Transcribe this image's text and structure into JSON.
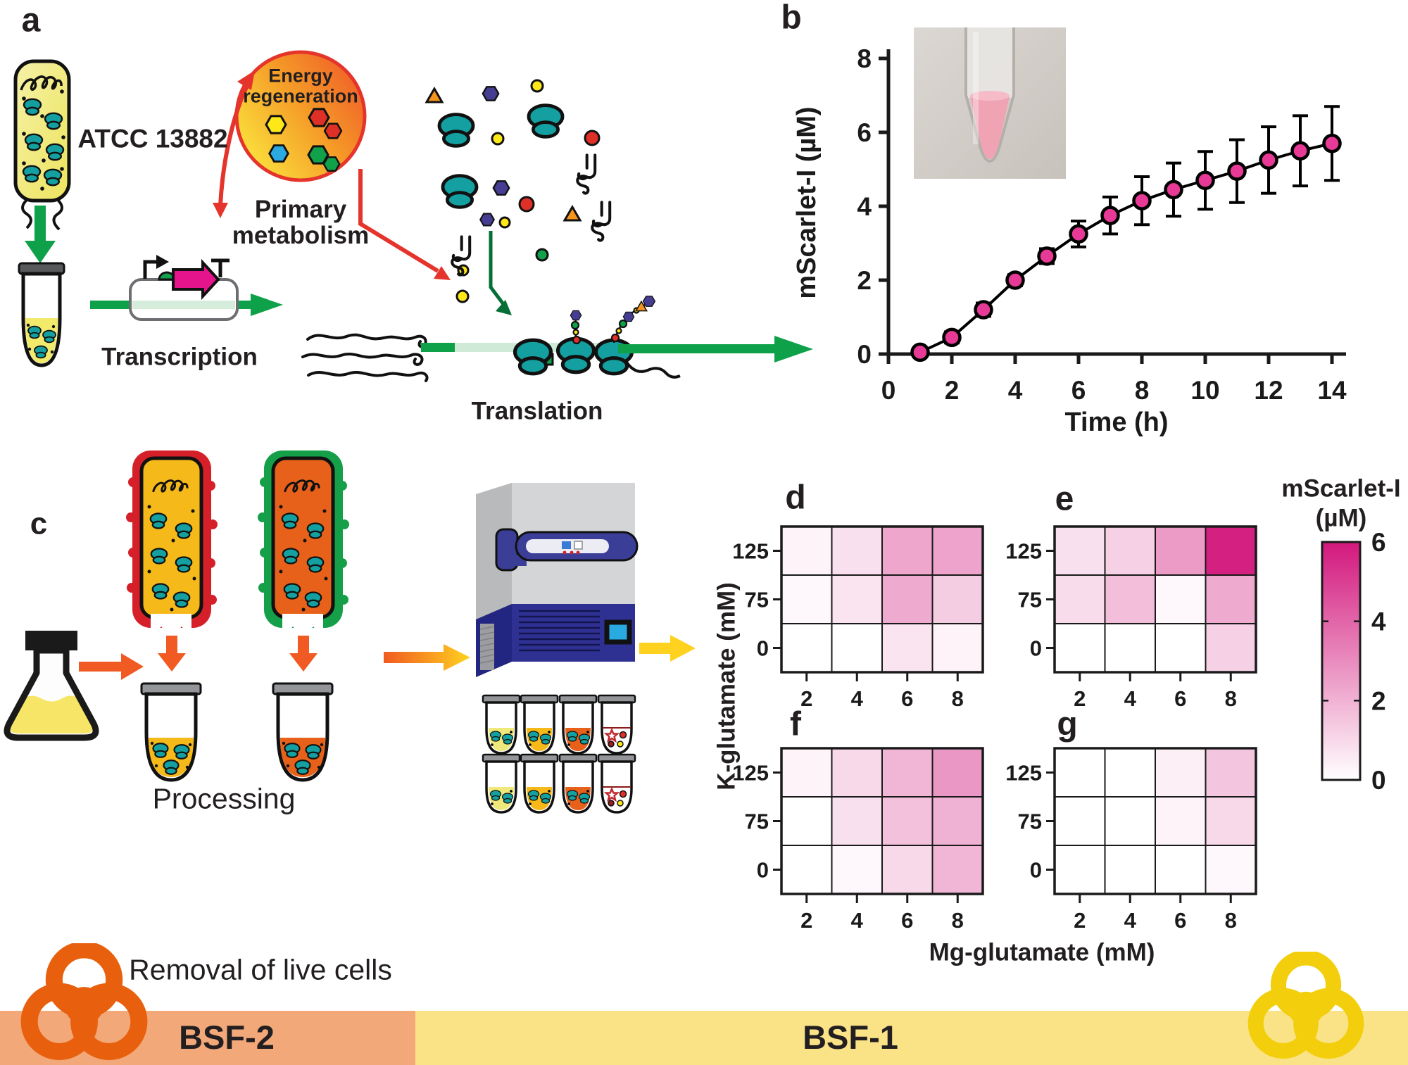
{
  "figure": {
    "panel_labels": {
      "a": "a",
      "b": "b",
      "c": "c",
      "d": "d",
      "e": "e",
      "f": "f",
      "g": "g"
    }
  },
  "panel_a": {
    "strain_label": "ATCC 13882",
    "energy_label": "Energy regeneration",
    "metabolism_label": "Primary metabolism",
    "transcription_label": "Transcription",
    "translation_label": "Translation"
  },
  "panel_c": {
    "processing_label": "Processing",
    "removal_label": "Removal of live cells"
  },
  "heatmap_axes": {
    "xlabel": "Mg-glutamate (mM)",
    "ylabel": "K-glutamate (mM)"
  },
  "colorbar": {
    "title": "mScarlet-I",
    "unit": "(µM)",
    "ticks": [
      6,
      4,
      2,
      0
    ],
    "vmin": 0,
    "vmax": 6,
    "max_color": "#D3187D",
    "min_color": "#FFFFFF"
  },
  "footer": {
    "bsf2_label": "BSF-2",
    "bsf1_label": "BSF-1",
    "bsf2_color": "#F2A878",
    "bsf1_color": "#FAE387",
    "biohazard_left_color": "#E8600E",
    "biohazard_right_color": "#F3CE0C"
  },
  "chart_data": [
    {
      "type": "scatter",
      "panel": "b",
      "title": "",
      "xlabel": "Time (h)",
      "ylabel": "mScarlet-I (µM)",
      "x": [
        1,
        2,
        3,
        4,
        5,
        6,
        7,
        8,
        9,
        10,
        11,
        12,
        13,
        14
      ],
      "y": [
        0.05,
        0.45,
        1.2,
        2.0,
        2.65,
        3.25,
        3.75,
        4.15,
        4.45,
        4.7,
        4.95,
        5.25,
        5.5,
        5.7
      ],
      "yerr": [
        0.1,
        0.15,
        0.18,
        0.15,
        0.2,
        0.35,
        0.5,
        0.65,
        0.72,
        0.78,
        0.85,
        0.9,
        0.95,
        1.0
      ],
      "xlim": [
        0,
        14.5
      ],
      "ylim": [
        0,
        8
      ],
      "xticks": [
        0,
        2,
        4,
        6,
        8,
        10,
        12,
        14
      ],
      "yticks": [
        0,
        2,
        4,
        6,
        8
      ],
      "marker_color": "#E73A96",
      "line_color": "#000000",
      "grid": false,
      "inset_note": "photo of microtube with pink liquid"
    },
    {
      "type": "heatmap",
      "panel": "d",
      "xlabel": "Mg-glutamate (mM)",
      "ylabel": "K-glutamate (mM)",
      "x_categories": [
        2,
        4,
        6,
        8
      ],
      "y_categories": [
        125,
        75,
        0
      ],
      "values": [
        [
          0.3,
          0.8,
          2.3,
          2.4
        ],
        [
          0.2,
          0.7,
          2.2,
          1.3
        ],
        [
          0.0,
          0.0,
          0.7,
          0.3
        ]
      ],
      "vmin": 0,
      "vmax": 6
    },
    {
      "type": "heatmap",
      "panel": "e",
      "xlabel": "Mg-glutamate (mM)",
      "ylabel": "K-glutamate (mM)",
      "x_categories": [
        2,
        4,
        6,
        8
      ],
      "y_categories": [
        125,
        75,
        0
      ],
      "values": [
        [
          0.8,
          1.2,
          2.6,
          5.8
        ],
        [
          0.9,
          1.7,
          0.2,
          2.2
        ],
        [
          0.0,
          0.0,
          0.0,
          1.2
        ]
      ],
      "vmin": 0,
      "vmax": 6
    },
    {
      "type": "heatmap",
      "panel": "f",
      "xlabel": "Mg-glutamate (mM)",
      "ylabel": "K-glutamate (mM)",
      "x_categories": [
        2,
        4,
        6,
        8
      ],
      "y_categories": [
        125,
        75,
        0
      ],
      "values": [
        [
          0.3,
          1.0,
          1.9,
          2.7
        ],
        [
          0.0,
          0.8,
          1.6,
          2.0
        ],
        [
          0.0,
          0.2,
          1.0,
          1.9
        ]
      ],
      "vmin": 0,
      "vmax": 6
    },
    {
      "type": "heatmap",
      "panel": "g",
      "xlabel": "Mg-glutamate (mM)",
      "ylabel": "K-glutamate (mM)",
      "x_categories": [
        2,
        4,
        6,
        8
      ],
      "y_categories": [
        125,
        75,
        0
      ],
      "values": [
        [
          0.0,
          0.0,
          0.4,
          1.5
        ],
        [
          0.0,
          0.0,
          0.3,
          1.0
        ],
        [
          0.0,
          0.0,
          0.0,
          0.2
        ]
      ],
      "vmin": 0,
      "vmax": 6
    }
  ]
}
